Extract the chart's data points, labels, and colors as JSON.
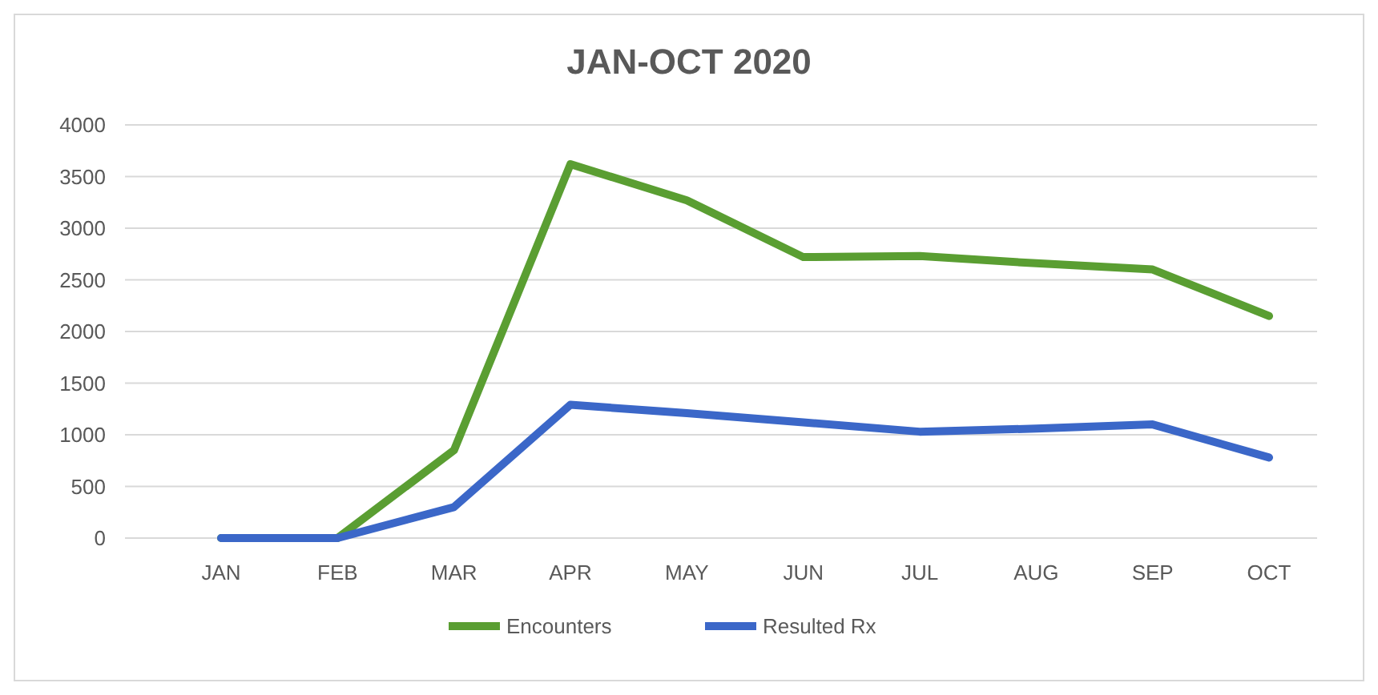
{
  "chart_data": {
    "type": "line",
    "title": "JAN-OCT 2020",
    "categories": [
      "JAN",
      "FEB",
      "MAR",
      "APR",
      "MAY",
      "JUN",
      "JUL",
      "AUG",
      "SEP",
      "OCT"
    ],
    "series": [
      {
        "name": "Encounters",
        "color": "#5a9e32",
        "values": [
          0,
          0,
          850,
          3620,
          3270,
          2720,
          2730,
          2660,
          2600,
          2150
        ]
      },
      {
        "name": "Resulted Rx",
        "color": "#3b67c8",
        "values": [
          0,
          0,
          300,
          1290,
          1210,
          1120,
          1030,
          1060,
          1100,
          780
        ]
      }
    ],
    "ylim": [
      0,
      4000
    ],
    "yticks": [
      0,
      500,
      1000,
      1500,
      2000,
      2500,
      3000,
      3500,
      4000
    ],
    "grid": "y",
    "legend": "bottom",
    "marker": "none",
    "line_style": "solid"
  }
}
